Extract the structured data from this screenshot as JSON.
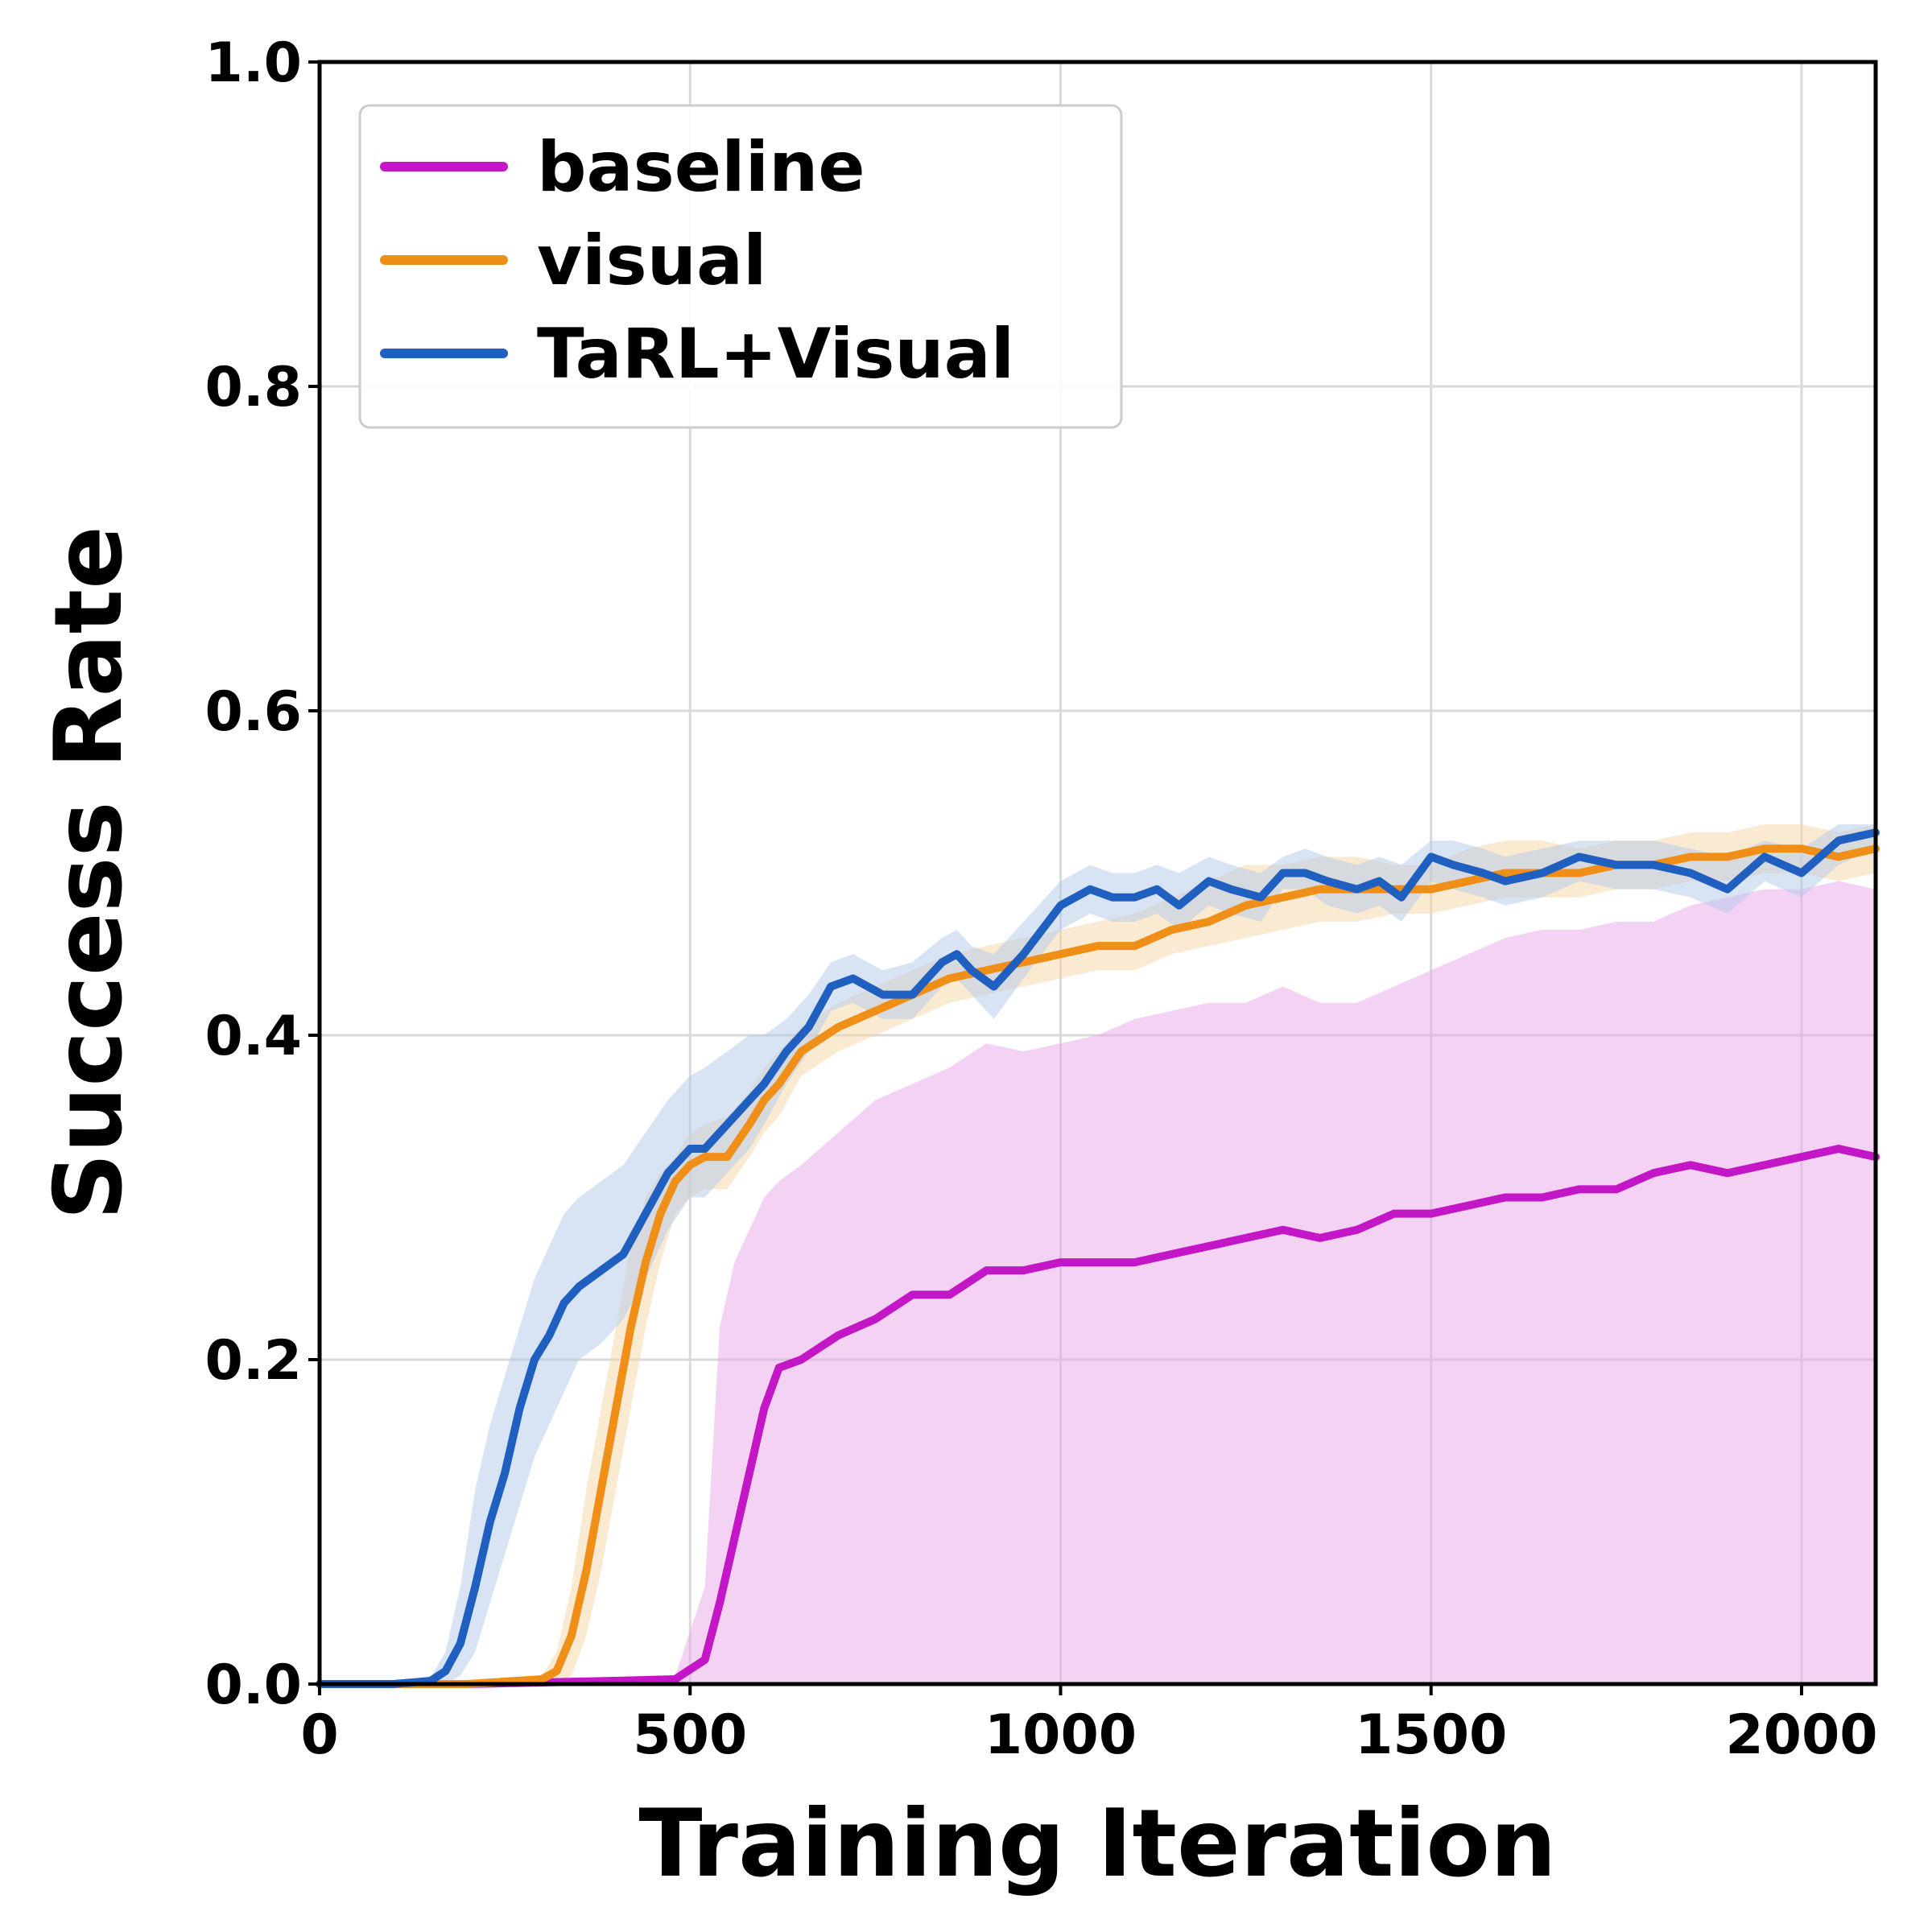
{
  "chart_data": {
    "type": "line",
    "xlabel": "Training Iteration",
    "ylabel": "Success Rate",
    "xlim": [
      0,
      2100
    ],
    "ylim": [
      0,
      1.0
    ],
    "xticks": [
      "0",
      "500",
      "1000",
      "1500",
      "2000"
    ],
    "yticks": [
      "0.0",
      "0.2",
      "0.4",
      "0.6",
      "0.8",
      "1.0"
    ],
    "grid": true,
    "legend_position": "top-left",
    "legend": [
      "baseline",
      "visual",
      "TaRL+Visual"
    ],
    "series": [
      {
        "name": "baseline",
        "color": "#c316c6",
        "band_color": "#e9a6ea",
        "x": [
          0,
          100,
          200,
          300,
          400,
          480,
          520,
          540,
          560,
          580,
          600,
          620,
          650,
          700,
          750,
          800,
          850,
          900,
          950,
          1000,
          1050,
          1100,
          1150,
          1200,
          1250,
          1300,
          1350,
          1400,
          1450,
          1500,
          1550,
          1600,
          1650,
          1700,
          1750,
          1800,
          1850,
          1900,
          1950,
          2000,
          2050,
          2100
        ],
        "mean": [
          0,
          0,
          0,
          0.001,
          0.002,
          0.003,
          0.015,
          0.05,
          0.09,
          0.13,
          0.17,
          0.195,
          0.2,
          0.215,
          0.225,
          0.24,
          0.24,
          0.255,
          0.255,
          0.26,
          0.26,
          0.26,
          0.265,
          0.27,
          0.275,
          0.28,
          0.275,
          0.28,
          0.29,
          0.29,
          0.295,
          0.3,
          0.3,
          0.305,
          0.305,
          0.315,
          0.32,
          0.315,
          0.32,
          0.325,
          0.33,
          0.325
        ],
        "upper": [
          0,
          0,
          0,
          0.002,
          0.004,
          0.005,
          0.06,
          0.22,
          0.26,
          0.28,
          0.3,
          0.31,
          0.32,
          0.34,
          0.36,
          0.37,
          0.38,
          0.395,
          0.39,
          0.395,
          0.4,
          0.41,
          0.415,
          0.42,
          0.42,
          0.43,
          0.42,
          0.42,
          0.43,
          0.44,
          0.45,
          0.46,
          0.465,
          0.465,
          0.47,
          0.47,
          0.48,
          0.485,
          0.49,
          0.49,
          0.495,
          0.49
        ],
        "lower": [
          0,
          0,
          0,
          0,
          0,
          0,
          0,
          0,
          0,
          0,
          0,
          0,
          0,
          0,
          0,
          0,
          0,
          0,
          0,
          0,
          0,
          0,
          0,
          0,
          0,
          0,
          0,
          0,
          0,
          0,
          0,
          0,
          0,
          0,
          0,
          0,
          0,
          0,
          0,
          0,
          0,
          0
        ]
      },
      {
        "name": "visual",
        "color": "#ef8f17",
        "band_color": "#f6d5a6",
        "x": [
          0,
          100,
          200,
          300,
          320,
          340,
          360,
          380,
          400,
          420,
          440,
          460,
          480,
          500,
          520,
          550,
          580,
          600,
          620,
          650,
          700,
          750,
          800,
          850,
          900,
          950,
          1000,
          1050,
          1100,
          1150,
          1200,
          1250,
          1300,
          1350,
          1400,
          1450,
          1500,
          1550,
          1600,
          1650,
          1700,
          1750,
          1800,
          1850,
          1900,
          1950,
          2000,
          2050,
          2100
        ],
        "mean": [
          0,
          0,
          0,
          0.003,
          0.008,
          0.03,
          0.07,
          0.12,
          0.17,
          0.22,
          0.26,
          0.29,
          0.31,
          0.32,
          0.325,
          0.325,
          0.345,
          0.36,
          0.37,
          0.39,
          0.405,
          0.415,
          0.425,
          0.435,
          0.44,
          0.445,
          0.45,
          0.455,
          0.455,
          0.465,
          0.47,
          0.48,
          0.485,
          0.49,
          0.49,
          0.49,
          0.49,
          0.495,
          0.5,
          0.5,
          0.5,
          0.505,
          0.505,
          0.51,
          0.51,
          0.515,
          0.515,
          0.51,
          0.515
        ],
        "upper": [
          0,
          0,
          0,
          0.005,
          0.02,
          0.06,
          0.12,
          0.17,
          0.22,
          0.27,
          0.3,
          0.315,
          0.325,
          0.34,
          0.345,
          0.35,
          0.365,
          0.38,
          0.39,
          0.405,
          0.42,
          0.43,
          0.44,
          0.45,
          0.455,
          0.46,
          0.465,
          0.47,
          0.475,
          0.485,
          0.495,
          0.505,
          0.505,
          0.51,
          0.51,
          0.505,
          0.505,
          0.515,
          0.52,
          0.52,
          0.515,
          0.52,
          0.52,
          0.525,
          0.525,
          0.53,
          0.53,
          0.525,
          0.53
        ],
        "lower": [
          0,
          0,
          0,
          0.001,
          0.0,
          0.005,
          0.03,
          0.07,
          0.12,
          0.17,
          0.22,
          0.26,
          0.29,
          0.3,
          0.305,
          0.305,
          0.325,
          0.34,
          0.35,
          0.375,
          0.39,
          0.4,
          0.41,
          0.42,
          0.425,
          0.43,
          0.435,
          0.44,
          0.44,
          0.45,
          0.455,
          0.46,
          0.465,
          0.47,
          0.47,
          0.475,
          0.475,
          0.48,
          0.485,
          0.485,
          0.485,
          0.49,
          0.49,
          0.495,
          0.495,
          0.5,
          0.5,
          0.495,
          0.5
        ]
      },
      {
        "name": "TaRL+Visual",
        "color": "#1f5fc0",
        "band_color": "#b2c9e9",
        "x": [
          0,
          100,
          150,
          170,
          190,
          210,
          230,
          250,
          270,
          290,
          310,
          330,
          350,
          380,
          410,
          440,
          470,
          500,
          520,
          550,
          580,
          600,
          630,
          660,
          690,
          720,
          760,
          800,
          840,
          860,
          880,
          910,
          950,
          1000,
          1040,
          1070,
          1100,
          1130,
          1160,
          1200,
          1230,
          1270,
          1300,
          1330,
          1360,
          1400,
          1430,
          1460,
          1500,
          1530,
          1570,
          1600,
          1650,
          1700,
          1750,
          1800,
          1850,
          1900,
          1950,
          2000,
          2050,
          2100
        ],
        "mean": [
          0,
          0,
          0.002,
          0.008,
          0.025,
          0.06,
          0.1,
          0.13,
          0.17,
          0.2,
          0.215,
          0.235,
          0.245,
          0.255,
          0.265,
          0.29,
          0.315,
          0.33,
          0.33,
          0.345,
          0.36,
          0.37,
          0.39,
          0.405,
          0.43,
          0.435,
          0.425,
          0.425,
          0.445,
          0.45,
          0.44,
          0.43,
          0.45,
          0.48,
          0.49,
          0.485,
          0.485,
          0.49,
          0.48,
          0.495,
          0.49,
          0.485,
          0.5,
          0.5,
          0.495,
          0.49,
          0.495,
          0.485,
          0.51,
          0.505,
          0.5,
          0.495,
          0.5,
          0.51,
          0.505,
          0.505,
          0.5,
          0.49,
          0.51,
          0.5,
          0.52,
          0.525
        ],
        "upper": [
          0,
          0,
          0.004,
          0.02,
          0.06,
          0.12,
          0.16,
          0.19,
          0.22,
          0.25,
          0.27,
          0.29,
          0.3,
          0.31,
          0.32,
          0.34,
          0.36,
          0.375,
          0.38,
          0.39,
          0.4,
          0.4,
          0.41,
          0.425,
          0.445,
          0.45,
          0.44,
          0.445,
          0.46,
          0.465,
          0.455,
          0.45,
          0.47,
          0.495,
          0.505,
          0.5,
          0.5,
          0.505,
          0.5,
          0.51,
          0.505,
          0.5,
          0.51,
          0.515,
          0.51,
          0.505,
          0.51,
          0.505,
          0.52,
          0.52,
          0.515,
          0.51,
          0.515,
          0.52,
          0.52,
          0.52,
          0.515,
          0.51,
          0.52,
          0.515,
          0.53,
          0.53
        ],
        "lower": [
          0,
          0,
          0,
          0.0,
          0.005,
          0.02,
          0.05,
          0.08,
          0.11,
          0.14,
          0.16,
          0.18,
          0.2,
          0.21,
          0.225,
          0.25,
          0.28,
          0.3,
          0.3,
          0.315,
          0.33,
          0.345,
          0.37,
          0.39,
          0.415,
          0.42,
          0.41,
          0.41,
          0.43,
          0.435,
          0.425,
          0.41,
          0.435,
          0.465,
          0.475,
          0.47,
          0.47,
          0.475,
          0.465,
          0.48,
          0.475,
          0.47,
          0.49,
          0.49,
          0.48,
          0.475,
          0.48,
          0.47,
          0.495,
          0.49,
          0.485,
          0.48,
          0.485,
          0.495,
          0.49,
          0.49,
          0.485,
          0.475,
          0.495,
          0.485,
          0.505,
          0.515
        ]
      }
    ]
  }
}
